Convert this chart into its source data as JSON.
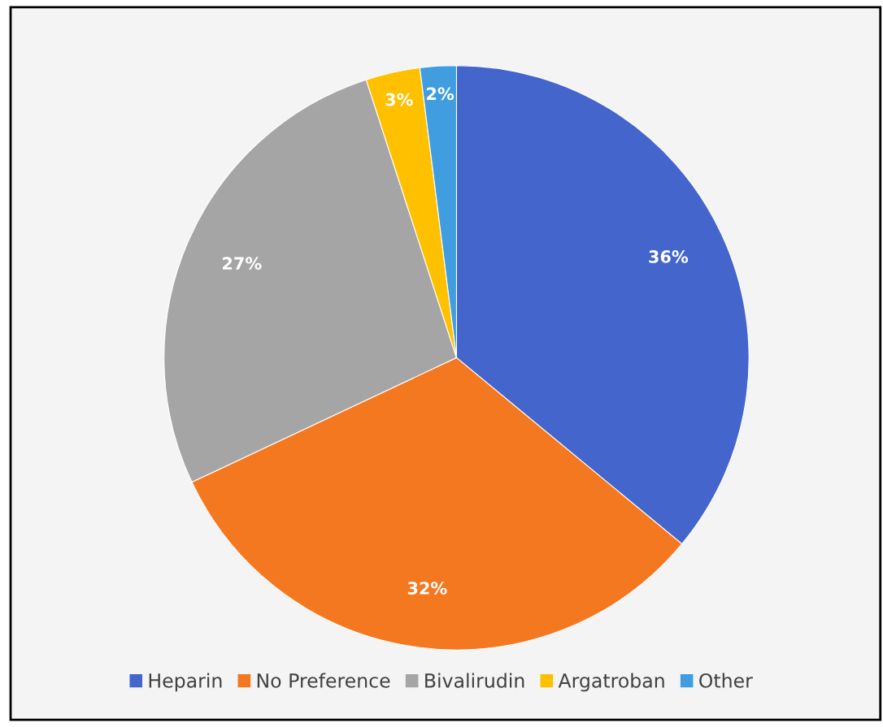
{
  "chart_data": {
    "type": "pie",
    "categories": [
      "Heparin",
      "No Preference",
      "Bivalirudin",
      "Argatroban",
      "Other"
    ],
    "values": [
      36,
      32,
      27,
      3,
      2
    ],
    "colors": [
      "#4466cc",
      "#f47820",
      "#a5a5a5",
      "#ffc000",
      "#3f9de0"
    ],
    "value_labels": [
      "36%",
      "32%",
      "27%",
      "3%",
      "2%"
    ],
    "legend": "bottom"
  }
}
